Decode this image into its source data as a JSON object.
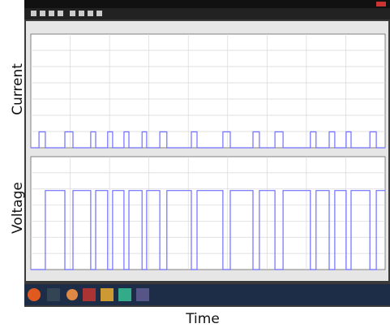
{
  "chart_data": [
    {
      "type": "line",
      "ylabel": "Current",
      "xlim": [
        0,
        100
      ],
      "ylim": [
        0,
        10
      ],
      "grid": true,
      "x": [
        0,
        2.3,
        2.3,
        4.1,
        4.1,
        9.6,
        9.6,
        11.9,
        11.9,
        16.9,
        16.9,
        18.3,
        18.3,
        21.7,
        21.7,
        23.1,
        23.1,
        26.3,
        26.3,
        27.7,
        27.7,
        31.4,
        31.4,
        32.7,
        32.7,
        36.4,
        36.4,
        38.4,
        38.4,
        45.3,
        45.3,
        46.9,
        46.9,
        54.2,
        54.2,
        56.3,
        56.3,
        62.7,
        62.7,
        64.5,
        64.5,
        68.9,
        68.9,
        71.2,
        71.2,
        78.9,
        78.9,
        80.5,
        80.5,
        84.2,
        84.2,
        85.8,
        85.8,
        89.0,
        89.0,
        90.4,
        90.4,
        95.7,
        95.7,
        97.5,
        97.5,
        100
      ],
      "series": [
        {
          "color": "#6f6fff",
          "values": [
            0,
            0,
            1.4,
            1.4,
            0,
            0,
            1.4,
            1.4,
            0,
            0,
            1.4,
            1.4,
            0,
            0,
            1.4,
            1.4,
            0,
            0,
            1.4,
            1.4,
            0,
            0,
            1.4,
            1.4,
            0,
            0,
            1.4,
            1.4,
            0,
            0,
            1.4,
            1.4,
            0,
            0,
            1.4,
            1.4,
            0,
            0,
            1.4,
            1.4,
            0,
            0,
            1.4,
            1.4,
            0,
            0,
            1.4,
            1.4,
            0,
            0,
            1.4,
            1.4,
            0,
            0,
            1.4,
            1.4,
            0,
            0,
            1.4,
            1.4,
            0,
            0
          ]
        }
      ]
    },
    {
      "type": "line",
      "ylabel": "Voltage",
      "xlabel": "Time",
      "xlim": [
        0,
        100
      ],
      "ylim": [
        0,
        10
      ],
      "grid": true,
      "x": [
        0,
        4.1,
        4.1,
        9.6,
        9.6,
        11.9,
        11.9,
        16.9,
        16.9,
        18.3,
        18.3,
        21.7,
        21.7,
        23.1,
        23.1,
        26.3,
        26.3,
        27.7,
        27.7,
        31.4,
        31.4,
        32.7,
        32.7,
        36.4,
        36.4,
        38.4,
        38.4,
        45.3,
        45.3,
        46.9,
        46.9,
        54.2,
        54.2,
        56.3,
        56.3,
        62.7,
        62.7,
        64.5,
        64.5,
        68.9,
        68.9,
        71.2,
        71.2,
        78.9,
        78.9,
        80.5,
        80.5,
        84.2,
        84.2,
        85.8,
        85.8,
        89.0,
        89.0,
        90.4,
        90.4,
        95.7,
        95.7,
        97.5,
        97.5,
        100
      ],
      "series": [
        {
          "color": "#6f6fff",
          "values": [
            0,
            0,
            7,
            7,
            0,
            0,
            7,
            7,
            0,
            0,
            7,
            7,
            0,
            0,
            7,
            7,
            0,
            0,
            7,
            7,
            0,
            0,
            7,
            7,
            0,
            0,
            7,
            7,
            0,
            0,
            7,
            7,
            0,
            0,
            7,
            7,
            0,
            0,
            7,
            7,
            0,
            0,
            7,
            7,
            0,
            0,
            7,
            7,
            0,
            0,
            7,
            7,
            0,
            0,
            7,
            7,
            0,
            0,
            7,
            7
          ]
        }
      ]
    }
  ]
}
